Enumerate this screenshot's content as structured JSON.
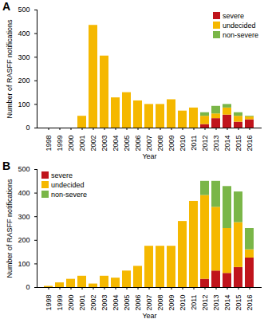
{
  "chart_data": [
    {
      "type": "bar",
      "title": "A",
      "x_label": "Year",
      "y_label": "Number of RASFF notifications",
      "categories": [
        "1998",
        "1999",
        "2000",
        "2001",
        "2002",
        "2003",
        "2004",
        "2005",
        "2006",
        "2007",
        "2008",
        "2009",
        "2010",
        "2011",
        "2012",
        "2013",
        "2014",
        "2015",
        "2016"
      ],
      "series": [
        {
          "name": "severe",
          "color": "#c0141c",
          "values": [
            0,
            0,
            0,
            0,
            0,
            0,
            0,
            0,
            0,
            0,
            0,
            0,
            0,
            0,
            15,
            40,
            55,
            25,
            35
          ]
        },
        {
          "name": "undecided",
          "color": "#f5b800",
          "values": [
            0,
            0,
            0,
            50,
            435,
            305,
            128,
            150,
            115,
            100,
            100,
            120,
            72,
            85,
            35,
            20,
            30,
            25,
            12
          ]
        },
        {
          "name": "non-severe",
          "color": "#7ab648",
          "values": [
            0,
            0,
            0,
            0,
            0,
            0,
            0,
            0,
            0,
            0,
            0,
            0,
            0,
            0,
            15,
            32,
            15,
            15,
            3
          ]
        }
      ],
      "ylim": [
        0,
        500
      ],
      "yticks": [
        0,
        100,
        200,
        300,
        400,
        500
      ],
      "stacked": true,
      "legend": "top-right"
    },
    {
      "type": "bar",
      "title": "B",
      "x_label": "Year",
      "y_label": "Number of RASFF notifications",
      "categories": [
        "1998",
        "1999",
        "2000",
        "2001",
        "2002",
        "2003",
        "2004",
        "2005",
        "2006",
        "2007",
        "2008",
        "2009",
        "2010",
        "2011",
        "2012",
        "2013",
        "2014",
        "2015",
        "2016"
      ],
      "series": [
        {
          "name": "severe",
          "color": "#c0141c",
          "values": [
            0,
            0,
            0,
            0,
            0,
            0,
            0,
            0,
            0,
            0,
            0,
            0,
            0,
            0,
            35,
            70,
            60,
            85,
            125
          ]
        },
        {
          "name": "undecided",
          "color": "#f5b800",
          "values": [
            5,
            20,
            35,
            48,
            15,
            48,
            40,
            70,
            90,
            175,
            175,
            175,
            280,
            365,
            355,
            270,
            190,
            190,
            35
          ]
        },
        {
          "name": "non-severe",
          "color": "#7ab648",
          "values": [
            0,
            0,
            0,
            0,
            0,
            0,
            0,
            0,
            0,
            0,
            0,
            0,
            0,
            0,
            60,
            110,
            178,
            130,
            90
          ]
        }
      ],
      "ylim": [
        0,
        500
      ],
      "yticks": [
        0,
        100,
        200,
        300,
        400,
        500
      ],
      "stacked": true,
      "legend": "top-left"
    }
  ]
}
